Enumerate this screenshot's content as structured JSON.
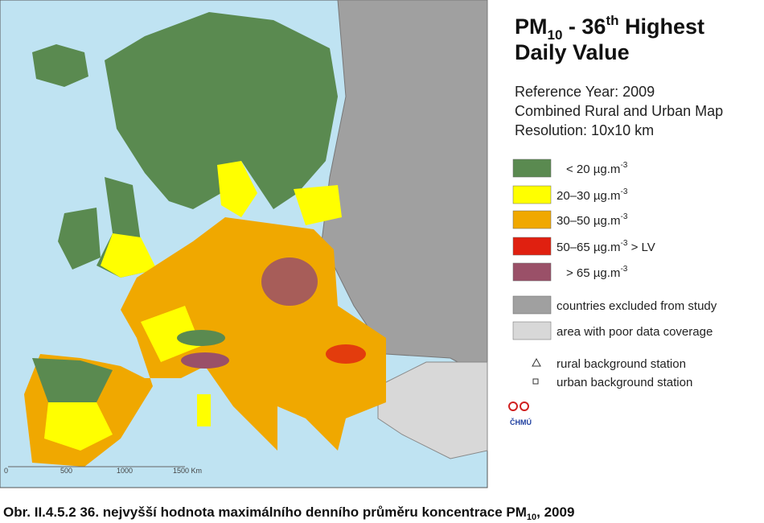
{
  "header": {
    "title_parts": [
      "PM",
      "10",
      " - 36",
      "th",
      " Highest"
    ],
    "title_line2": "Daily Value",
    "subtitle": [
      "Reference Year: 2009",
      "Combined Rural and Urban Map",
      "Resolution: 10x10 km"
    ]
  },
  "legend": {
    "items": [
      {
        "text": "<  20  µg.m",
        "sup": "-3",
        "color": "#5a8a50"
      },
      {
        "text": "20–30  µg.m",
        "sup": "-3",
        "color": "#ffff00"
      },
      {
        "text": "30–50  µg.m",
        "sup": "-3",
        "color": "#f0a800"
      },
      {
        "text": "50–65  µg.m",
        "sup": "-3",
        "extra": " > LV",
        "color": "#e02010"
      },
      {
        "text": ">  65  µg.m",
        "sup": "-3",
        "color": "#9a5068"
      },
      {
        "text": "countries excluded from study",
        "color": "#a0a0a0"
      },
      {
        "text": "area with poor data coverage",
        "color": "#d8d8d8"
      }
    ],
    "stations": [
      "rural background station",
      "urban background station"
    ]
  },
  "logo": "ČHMÚ",
  "scale": [
    "0",
    "500",
    "1000",
    "1500 Km"
  ],
  "caption": {
    "parts": [
      "Obr. II.4.5.2  36. nejvyšší hodnota maximálního denního průměru koncentrace PM",
      "10",
      ", 2009"
    ]
  }
}
